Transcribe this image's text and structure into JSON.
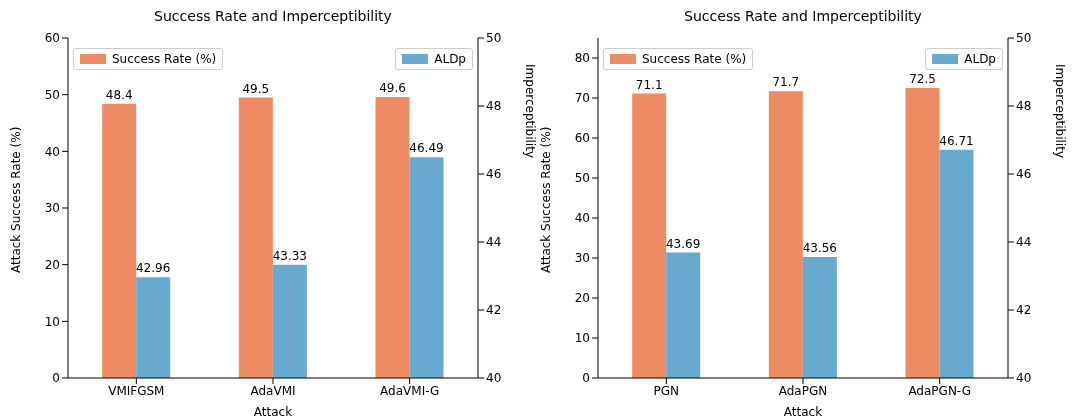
{
  "chart_data": [
    {
      "type": "bar",
      "title": "Success Rate and Imperceptibility",
      "xlabel": "Attack",
      "ylabel": "Attack Success Rate (%)",
      "y2label": "Imperceptibility",
      "categories": [
        "VMIFGSM",
        "AdaVMI",
        "AdaVMI-G"
      ],
      "series": [
        {
          "name": "Success Rate (%)",
          "color": "#ef8b62",
          "values": [
            48.4,
            49.5,
            49.6
          ]
        },
        {
          "name": "ALDp",
          "color": "#67a9cf",
          "values": [
            42.96,
            43.33,
            46.49
          ],
          "axis": "y2"
        }
      ],
      "ylim": [
        0,
        60
      ],
      "yticks": [
        0,
        10,
        20,
        30,
        40,
        50,
        60
      ],
      "y2lim": [
        40,
        50
      ],
      "y2ticks": [
        40,
        42,
        44,
        46,
        48,
        50
      ],
      "data_labels": true,
      "legend": "top",
      "grid": false
    },
    {
      "type": "bar",
      "title": "Success Rate and Imperceptibility",
      "xlabel": "Attack",
      "ylabel": "Attack Success Rate (%)",
      "y2label": "Imperceptibility",
      "categories": [
        "PGN",
        "AdaPGN",
        "AdaPGN-G"
      ],
      "series": [
        {
          "name": "Success Rate (%)",
          "color": "#ef8b62",
          "values": [
            71.1,
            71.7,
            72.5
          ]
        },
        {
          "name": "ALDp",
          "color": "#67a9cf",
          "values": [
            43.69,
            43.56,
            46.71
          ],
          "axis": "y2"
        }
      ],
      "ylim": [
        0,
        85
      ],
      "yticks": [
        0,
        10,
        20,
        30,
        40,
        50,
        60,
        70,
        80
      ],
      "y2lim": [
        40,
        50
      ],
      "y2ticks": [
        40,
        42,
        44,
        46,
        48,
        50
      ],
      "data_labels": true,
      "legend": "top",
      "grid": false
    }
  ]
}
